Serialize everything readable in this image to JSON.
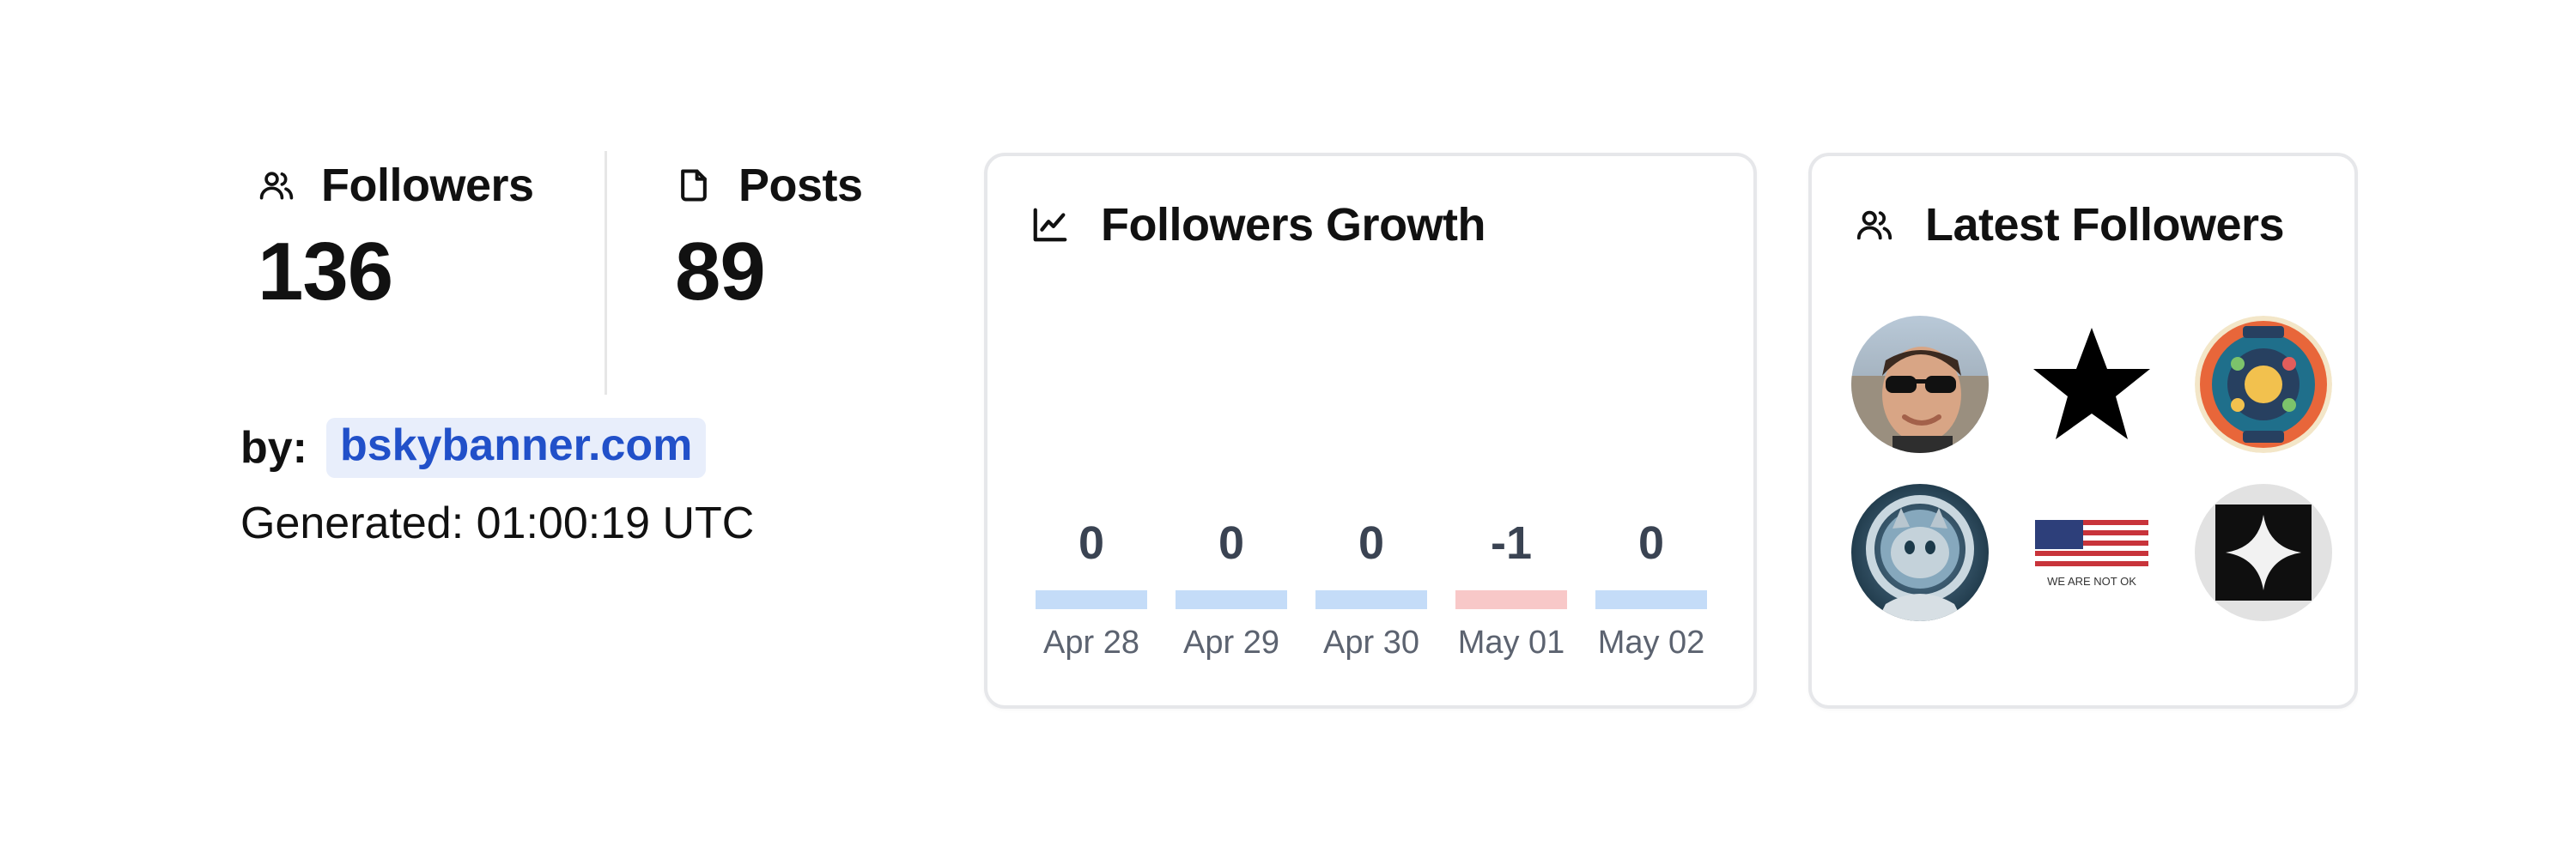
{
  "stats": {
    "followers": {
      "label": "Followers",
      "value": "136",
      "icon": "users-icon"
    },
    "posts": {
      "label": "Posts",
      "value": "89",
      "icon": "file-icon"
    }
  },
  "attribution": {
    "by_label": "by:",
    "link_text": "bskybanner.com",
    "generated": "Generated: 01:00:19 UTC"
  },
  "growth": {
    "title": "Followers Growth",
    "icon": "line-chart-icon",
    "chart_data": {
      "type": "bar",
      "categories": [
        "Apr 28",
        "Apr 29",
        "Apr 30",
        "May 01",
        "May 02"
      ],
      "values": [
        0,
        0,
        0,
        -1,
        0
      ],
      "value_labels": [
        "0",
        "0",
        "0",
        "-1",
        "0"
      ],
      "colors": {
        "positive": "#c4dcf8",
        "negative": "#f8c8c8"
      }
    }
  },
  "latest": {
    "title": "Latest Followers",
    "icon": "users-icon",
    "avatars": [
      {
        "name": "avatar-man-sunglasses"
      },
      {
        "name": "avatar-black-star"
      },
      {
        "name": "avatar-measure-learn-badge"
      },
      {
        "name": "avatar-astronaut-cat"
      },
      {
        "name": "avatar-we-are-not-ok-flag",
        "caption": "WE ARE NOT OK"
      },
      {
        "name": "avatar-sparkle-square"
      }
    ]
  }
}
